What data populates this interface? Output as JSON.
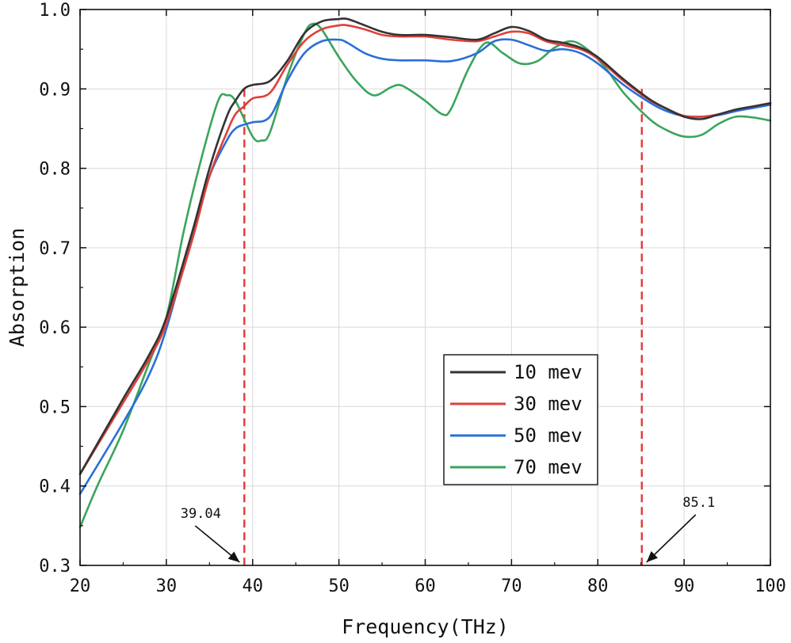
{
  "chart_data": {
    "type": "line",
    "xlabel": "Frequency(THz)",
    "ylabel": "Absorption",
    "xlim": [
      20,
      100
    ],
    "ylim": [
      0.3,
      1.0
    ],
    "xticks": [
      "20",
      "30",
      "40",
      "50",
      "60",
      "70",
      "80",
      "90",
      "100"
    ],
    "yticks": [
      "0.3",
      "0.4",
      "0.5",
      "0.6",
      "0.7",
      "0.8",
      "0.9",
      "1.0"
    ],
    "grid": true,
    "legend_position": "center-right",
    "series": [
      {
        "name": "10 mev",
        "color": "#333333",
        "x": [
          20,
          25,
          28,
          30,
          33,
          35,
          37,
          38,
          39,
          40,
          42,
          44,
          46,
          48,
          50,
          51,
          53,
          55,
          57,
          60,
          63,
          66,
          68,
          70,
          72,
          74,
          76,
          78,
          80,
          83,
          86,
          88,
          90,
          92,
          94,
          96,
          98,
          100
        ],
        "y": [
          0.415,
          0.51,
          0.565,
          0.612,
          0.72,
          0.8,
          0.865,
          0.885,
          0.9,
          0.905,
          0.91,
          0.935,
          0.97,
          0.985,
          0.988,
          0.988,
          0.98,
          0.972,
          0.968,
          0.968,
          0.965,
          0.962,
          0.97,
          0.978,
          0.973,
          0.962,
          0.958,
          0.952,
          0.94,
          0.912,
          0.887,
          0.875,
          0.865,
          0.862,
          0.868,
          0.874,
          0.878,
          0.882
        ]
      },
      {
        "name": "30 mev",
        "color": "#e0403a",
        "x": [
          20,
          25,
          28,
          30,
          33,
          35,
          37,
          38,
          39,
          40,
          42,
          44,
          46,
          48,
          50,
          51,
          53,
          55,
          57,
          60,
          63,
          66,
          68,
          70,
          72,
          74,
          76,
          78,
          80,
          83,
          86,
          88,
          90,
          92,
          94,
          96,
          98,
          100
        ],
        "y": [
          0.415,
          0.505,
          0.56,
          0.605,
          0.71,
          0.79,
          0.845,
          0.868,
          0.878,
          0.888,
          0.895,
          0.93,
          0.96,
          0.975,
          0.98,
          0.98,
          0.975,
          0.968,
          0.966,
          0.966,
          0.962,
          0.96,
          0.966,
          0.972,
          0.97,
          0.96,
          0.955,
          0.95,
          0.938,
          0.91,
          0.886,
          0.875,
          0.866,
          0.865,
          0.868,
          0.874,
          0.878,
          0.882
        ]
      },
      {
        "name": "50 mev",
        "color": "#2a6fd6",
        "x": [
          20,
          25,
          28,
          30,
          33,
          35,
          37,
          38,
          39,
          40,
          42,
          44,
          46,
          48,
          50,
          51,
          53,
          55,
          57,
          60,
          63,
          66,
          68,
          70,
          72,
          74,
          76,
          78,
          80,
          83,
          86,
          88,
          90,
          92,
          94,
          96,
          98,
          100
        ],
        "y": [
          0.39,
          0.48,
          0.54,
          0.598,
          0.715,
          0.79,
          0.835,
          0.85,
          0.855,
          0.858,
          0.865,
          0.91,
          0.945,
          0.96,
          0.962,
          0.958,
          0.945,
          0.938,
          0.936,
          0.936,
          0.935,
          0.945,
          0.96,
          0.962,
          0.955,
          0.948,
          0.95,
          0.945,
          0.932,
          0.905,
          0.883,
          0.872,
          0.866,
          0.865,
          0.867,
          0.872,
          0.876,
          0.88
        ]
      },
      {
        "name": "70 mev",
        "color": "#3aa55c",
        "x": [
          20,
          22,
          25,
          28,
          30,
          32,
          34,
          36,
          37,
          38,
          40,
          41,
          42,
          44,
          46,
          47,
          48,
          50,
          52,
          54,
          56,
          57,
          58,
          60,
          62,
          63,
          65,
          67,
          69,
          71,
          73,
          75,
          77,
          79,
          81,
          83,
          86,
          88,
          90,
          92,
          94,
          96,
          98,
          100
        ],
        "y": [
          0.348,
          0.4,
          0.47,
          0.555,
          0.612,
          0.72,
          0.81,
          0.885,
          0.892,
          0.885,
          0.84,
          0.835,
          0.845,
          0.915,
          0.97,
          0.982,
          0.975,
          0.94,
          0.91,
          0.892,
          0.902,
          0.905,
          0.9,
          0.885,
          0.868,
          0.875,
          0.925,
          0.958,
          0.945,
          0.932,
          0.935,
          0.952,
          0.96,
          0.948,
          0.925,
          0.895,
          0.862,
          0.848,
          0.84,
          0.842,
          0.856,
          0.865,
          0.864,
          0.86
        ]
      }
    ],
    "markers": [
      {
        "x": 39.04,
        "label": "39.04",
        "color": "#e23a3a"
      },
      {
        "x": 85.1,
        "label": "85.1",
        "color": "#e23a3a"
      }
    ]
  }
}
